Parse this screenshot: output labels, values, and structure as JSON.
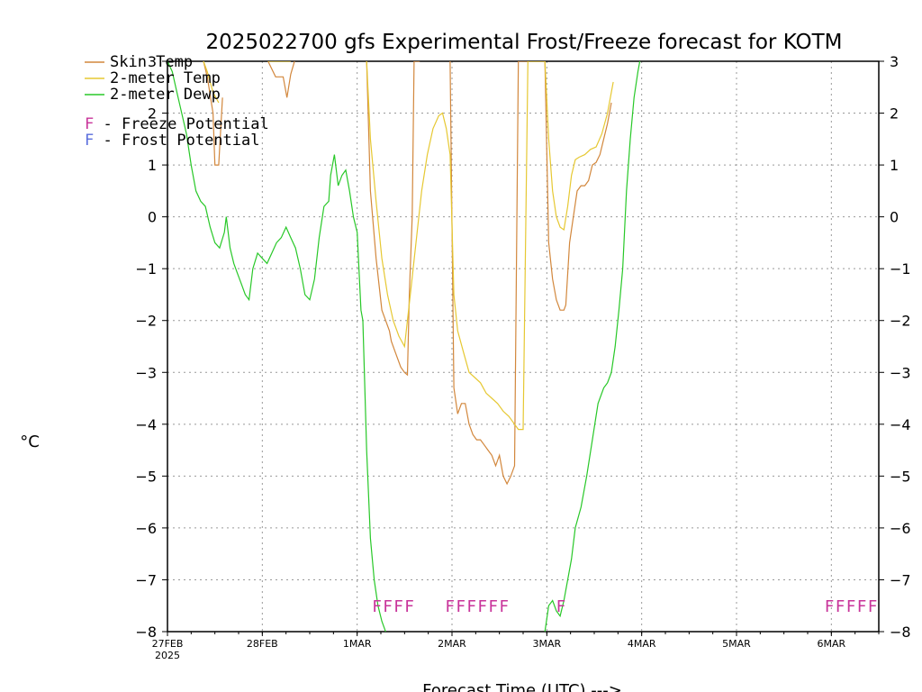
{
  "chart_data": {
    "type": "line",
    "title": "2025022700 gfs Experimental Frost/Freeze forecast for KOTM",
    "ylabel": "°C",
    "xlabel": "Forecast Time (UTC) --->",
    "ylim": [
      -8,
      3
    ],
    "xlim_days": [
      0,
      7.5
    ],
    "yticks": [
      -8,
      -7,
      -6,
      -5,
      -4,
      -3,
      -2,
      -1,
      0,
      1,
      2,
      3
    ],
    "ytick_labels": [
      "−8",
      "−7",
      "−6",
      "−5",
      "−4",
      "−3",
      "−2",
      "−1",
      "0",
      "1",
      "2",
      "3"
    ],
    "xticks": [
      {
        "label": "27FEB",
        "sub": "2025",
        "day": 0
      },
      {
        "label": "28FEB",
        "day": 1
      },
      {
        "label": "1MAR",
        "day": 2
      },
      {
        "label": "2MAR",
        "day": 3
      },
      {
        "label": "3MAR",
        "day": 4
      },
      {
        "label": "4MAR",
        "day": 5
      },
      {
        "label": "5MAR",
        "day": 6
      },
      {
        "label": "6MAR",
        "day": 7
      }
    ],
    "grid": true,
    "legend_position": "top-left",
    "legend": [
      {
        "label": "Skin Temp",
        "color": "#d2873c"
      },
      {
        "label": "2-meter Temp",
        "color": "#e6c832"
      },
      {
        "label": "2-meter Dewp",
        "color": "#28c828"
      },
      {
        "label": "F - Freeze Potential",
        "flag": "F",
        "rest": " - Freeze Potential",
        "color": "#c8349a"
      },
      {
        "label": "F - Frost Potential",
        "flag": "F",
        "rest": " - Frost Potential",
        "color": "#5a6edc"
      }
    ],
    "series": [
      {
        "name": "Skin Temp",
        "color": "#d2873c",
        "x": [
          0.38,
          0.42,
          0.48,
          0.5,
          0.54,
          0.58,
          1.06,
          1.14,
          1.22,
          1.26,
          1.3,
          1.34,
          2.1,
          2.14,
          2.2,
          2.26,
          2.3,
          2.34,
          2.36,
          2.4,
          2.46,
          2.5,
          2.53,
          2.55,
          2.58,
          2.6,
          2.62,
          2.66,
          2.98,
          3.02,
          3.06,
          3.1,
          3.14,
          3.18,
          3.22,
          3.26,
          3.3,
          3.34,
          3.38,
          3.42,
          3.46,
          3.5,
          3.54,
          3.58,
          3.62,
          3.66,
          3.7,
          3.75,
          3.8,
          3.84,
          3.86,
          3.98,
          4.02,
          4.06,
          4.1,
          4.14,
          4.18,
          4.2,
          4.24,
          4.28,
          4.32,
          4.36,
          4.4,
          4.44,
          4.48,
          4.52,
          4.56,
          4.6,
          4.64,
          4.68
        ],
        "y": [
          3,
          2.7,
          2.0,
          1.0,
          1.0,
          2.3,
          3,
          2.7,
          2.7,
          2.3,
          2.75,
          3,
          3,
          0.5,
          -0.8,
          -1.8,
          -2.0,
          -2.2,
          -2.4,
          -2.6,
          -2.9,
          -3.0,
          -3.05,
          -1.5,
          0,
          3,
          3,
          3,
          3,
          -3.3,
          -3.8,
          -3.6,
          -3.6,
          -4.0,
          -4.2,
          -4.3,
          -4.3,
          -4.4,
          -4.5,
          -4.6,
          -4.8,
          -4.6,
          -5.0,
          -5.15,
          -5.0,
          -4.8,
          3,
          3,
          3,
          3,
          3,
          3,
          -0.5,
          -1.2,
          -1.6,
          -1.8,
          -1.8,
          -1.7,
          -0.5,
          0,
          0.5,
          0.6,
          0.6,
          0.7,
          1.0,
          1.05,
          1.2,
          1.5,
          1.8,
          2.2
        ]
      },
      {
        "name": "2-meter Temp",
        "color": "#e6c832",
        "x": [
          0.38,
          0.42,
          0.48,
          0.54,
          1.06,
          1.14,
          1.22,
          1.3,
          2.1,
          2.14,
          2.2,
          2.26,
          2.32,
          2.38,
          2.44,
          2.5,
          2.56,
          2.62,
          2.68,
          2.74,
          2.8,
          2.86,
          2.9,
          2.94,
          2.98,
          3.02,
          3.06,
          3.12,
          3.18,
          3.24,
          3.3,
          3.36,
          3.42,
          3.48,
          3.54,
          3.6,
          3.66,
          3.7,
          3.75,
          3.8,
          3.86,
          3.98,
          4.02,
          4.06,
          4.1,
          4.14,
          4.18,
          4.22,
          4.26,
          4.3,
          4.34,
          4.4,
          4.46,
          4.52,
          4.58,
          4.64,
          4.7
        ],
        "y": [
          3,
          2.8,
          2.4,
          2.2,
          3,
          3,
          3,
          3,
          3,
          1.5,
          0.3,
          -0.8,
          -1.5,
          -2.0,
          -2.3,
          -2.5,
          -1.5,
          -0.5,
          0.5,
          1.2,
          1.7,
          1.95,
          2.0,
          1.7,
          1.2,
          -1.5,
          -2.2,
          -2.6,
          -3.0,
          -3.1,
          -3.2,
          -3.4,
          -3.5,
          -3.6,
          -3.75,
          -3.85,
          -4.0,
          -4.1,
          -4.1,
          3,
          3,
          3,
          1.5,
          0.5,
          0,
          -0.2,
          -0.25,
          0.2,
          0.8,
          1.1,
          1.15,
          1.2,
          1.3,
          1.35,
          1.6,
          2.0,
          2.6
        ]
      },
      {
        "name": "2-meter Dewp",
        "color": "#28c828",
        "x": [
          0.0,
          0.05,
          0.1,
          0.15,
          0.2,
          0.25,
          0.3,
          0.35,
          0.4,
          0.45,
          0.5,
          0.55,
          0.6,
          0.62,
          0.66,
          0.7,
          0.74,
          0.78,
          0.82,
          0.86,
          0.9,
          0.95,
          1.0,
          1.05,
          1.1,
          1.15,
          1.2,
          1.25,
          1.3,
          1.35,
          1.4,
          1.45,
          1.5,
          1.55,
          1.6,
          1.65,
          1.7,
          1.72,
          1.76,
          1.8,
          1.84,
          1.88,
          1.92,
          1.96,
          2.0,
          2.04,
          2.06,
          2.1,
          2.14,
          2.18,
          2.22,
          2.26,
          2.3,
          2.34,
          2.38,
          2.42,
          3.98,
          4.02,
          4.06,
          4.1,
          4.14,
          4.18,
          4.22,
          4.26,
          4.3,
          4.36,
          4.42,
          4.48,
          4.54,
          4.6,
          4.64,
          4.68,
          4.72,
          4.76,
          4.8,
          4.84,
          4.88,
          4.92,
          4.96,
          5.0
        ],
        "y": [
          3,
          2.8,
          2.4,
          2.0,
          1.6,
          1.0,
          0.5,
          0.3,
          0.2,
          -0.2,
          -0.5,
          -0.6,
          -0.3,
          0.0,
          -0.6,
          -0.9,
          -1.1,
          -1.3,
          -1.5,
          -1.6,
          -1.0,
          -0.7,
          -0.8,
          -0.9,
          -0.7,
          -0.5,
          -0.4,
          -0.2,
          -0.4,
          -0.6,
          -1.0,
          -1.5,
          -1.6,
          -1.2,
          -0.4,
          0.2,
          0.3,
          0.8,
          1.2,
          0.6,
          0.8,
          0.9,
          0.5,
          0.0,
          -0.3,
          -1.8,
          -2.0,
          -4.5,
          -6.2,
          -7.0,
          -7.5,
          -7.8,
          -8.0,
          -8.3,
          -8.6,
          -8.9,
          -8.0,
          -7.5,
          -7.4,
          -7.6,
          -7.7,
          -7.4,
          -7.0,
          -6.6,
          -6.0,
          -5.6,
          -5.0,
          -4.3,
          -3.6,
          -3.3,
          -3.2,
          -3.0,
          -2.5,
          -1.8,
          -1.0,
          0.5,
          1.5,
          2.3,
          2.8,
          3.2
        ]
      }
    ],
    "freeze_flags": [
      {
        "day_start": 2.16,
        "count": 4,
        "text": "FFFF"
      },
      {
        "day_start": 2.93,
        "count": 6,
        "text": "FFFFFF"
      },
      {
        "day_start": 4.1,
        "count": 1,
        "text": "F"
      },
      {
        "day_start": 6.93,
        "count": 5,
        "text": "FFFFF"
      }
    ],
    "frost_flags": []
  }
}
